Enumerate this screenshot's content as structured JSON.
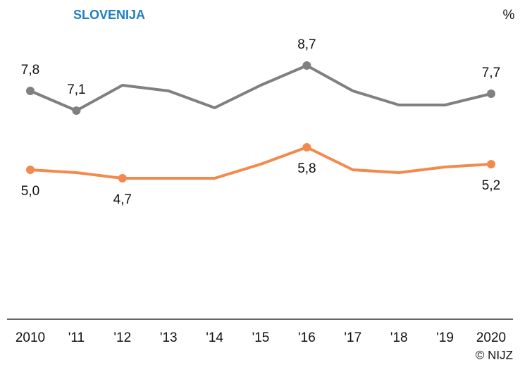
{
  "chart_data": {
    "type": "line",
    "title": "SLOVENIJA",
    "unit": "%",
    "credit": "© NIJZ",
    "categories": [
      "2010",
      "'11",
      "'12",
      "'13",
      "'14",
      "'15",
      "'16",
      "'17",
      "'18",
      "'19",
      "2020"
    ],
    "series": [
      {
        "color": "#808080",
        "values": [
          7.8,
          7.1,
          8.0,
          7.8,
          7.2,
          8.0,
          8.7,
          7.8,
          7.3,
          7.3,
          7.7
        ],
        "value_labels": [
          "7,8",
          "7,1",
          null,
          null,
          null,
          null,
          "8,7",
          null,
          null,
          null,
          "7,7"
        ],
        "label_position": "above"
      },
      {
        "color": "#f4894d",
        "values": [
          5.0,
          4.9,
          4.7,
          4.7,
          4.7,
          5.2,
          5.8,
          5.0,
          4.9,
          5.1,
          5.2
        ],
        "value_labels": [
          "5,0",
          null,
          "4,7",
          null,
          null,
          null,
          "5,8",
          null,
          null,
          null,
          "5,2"
        ],
        "label_position": "below"
      }
    ],
    "ylim": [
      0,
      10
    ]
  }
}
